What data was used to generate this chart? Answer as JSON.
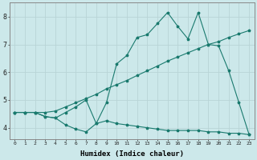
{
  "xlabel": "Humidex (Indice chaleur)",
  "bg_color": "#cce8ea",
  "line_color": "#1a7a6e",
  "grid_color": "#b8d4d6",
  "xlim": [
    -0.5,
    23.5
  ],
  "ylim": [
    3.6,
    8.5
  ],
  "yticks": [
    4,
    5,
    6,
    7,
    8
  ],
  "xtick_labels": [
    "0",
    "1",
    "2",
    "3",
    "4",
    "5",
    "6",
    "7",
    "8",
    "9",
    "10",
    "11",
    "12",
    "13",
    "14",
    "15",
    "16",
    "17",
    "18",
    "19",
    "20",
    "21",
    "22",
    "23"
  ],
  "line_bottom_x": [
    0,
    1,
    2,
    3,
    4,
    5,
    6,
    7,
    8,
    9,
    10,
    11,
    12,
    13,
    14,
    15,
    16,
    17,
    18,
    19,
    20,
    21,
    22,
    23
  ],
  "line_bottom_y": [
    4.55,
    4.55,
    4.55,
    4.4,
    4.35,
    4.1,
    3.95,
    3.85,
    4.15,
    4.25,
    4.15,
    4.1,
    4.05,
    4.0,
    3.95,
    3.9,
    3.9,
    3.9,
    3.9,
    3.85,
    3.85,
    3.8,
    3.8,
    3.75
  ],
  "line_mid_x": [
    0,
    1,
    2,
    3,
    4,
    5,
    6,
    7,
    8,
    9,
    10,
    11,
    12,
    13,
    14,
    15,
    16,
    17,
    18,
    19,
    20,
    21,
    22,
    23
  ],
  "line_mid_y": [
    4.55,
    4.55,
    4.55,
    4.55,
    4.6,
    4.75,
    4.9,
    5.05,
    5.2,
    5.4,
    5.55,
    5.7,
    5.88,
    6.05,
    6.22,
    6.4,
    6.55,
    6.7,
    6.85,
    7.0,
    7.1,
    7.25,
    7.38,
    7.5
  ],
  "line_top_x": [
    0,
    1,
    2,
    3,
    4,
    5,
    6,
    7,
    8,
    9,
    10,
    11,
    12,
    13,
    14,
    15,
    16,
    17,
    18,
    19,
    20,
    21,
    22,
    23
  ],
  "line_top_y": [
    4.55,
    4.55,
    4.55,
    4.4,
    4.35,
    4.55,
    4.75,
    5.0,
    4.15,
    4.9,
    6.3,
    6.6,
    7.25,
    7.35,
    7.75,
    8.15,
    7.65,
    7.2,
    8.15,
    7.0,
    6.95,
    6.05,
    4.9,
    3.75
  ]
}
